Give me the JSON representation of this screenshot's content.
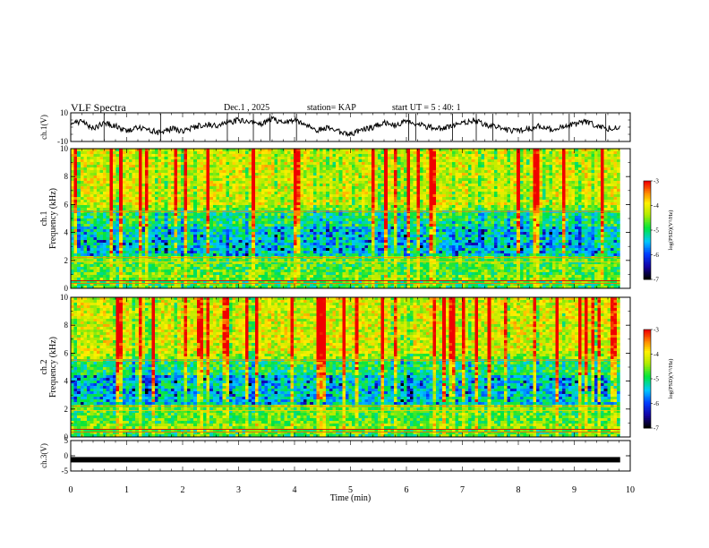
{
  "header": {
    "title": "VLF Spectra",
    "date": "Dec.1 , 2025",
    "station": "station= KAP",
    "start_ut": "start UT = 5 : 40: 1"
  },
  "chart_data": [
    {
      "id": "ch1-waveform",
      "type": "line",
      "ylabel": "ch.1(V)",
      "ylim": [
        -10,
        10
      ],
      "y_tick_labels": [
        "10",
        "-10"
      ],
      "xlim": [
        0,
        10
      ],
      "x_step": 0.2,
      "x_start": 0,
      "values": [
        2,
        4,
        -1,
        3,
        1,
        -3,
        0,
        -2,
        -4,
        -1,
        -3,
        0,
        2,
        1,
        3,
        5,
        4,
        2,
        6,
        3,
        5,
        1,
        -2,
        0,
        -3,
        -5,
        -2,
        0,
        3,
        1,
        4,
        2,
        0,
        -1,
        1,
        3,
        5,
        2,
        0,
        -2,
        -3,
        -1,
        1,
        -2,
        0,
        2,
        4,
        1,
        -1,
        0
      ]
    },
    {
      "id": "ch1-spectrogram",
      "type": "heatmap",
      "ylabel": "Frequency (kHz)",
      "channel_label": "ch.1",
      "ylim": [
        0,
        10
      ],
      "y_tick_labels": [
        "0",
        "2",
        "4",
        "6",
        "8",
        "10"
      ],
      "xlim": [
        0,
        10
      ],
      "colorbar": {
        "label": "log(PSD)(V²/Hz)",
        "range": [
          -7,
          -3
        ],
        "tick_labels": [
          "-3",
          "-4",
          "-5",
          "-6",
          "-7"
        ]
      }
    },
    {
      "id": "ch2-spectrogram",
      "type": "heatmap",
      "ylabel": "Frequency (kHz)",
      "channel_label": "ch.2",
      "ylim": [
        0,
        10
      ],
      "y_tick_labels": [
        "0",
        "2",
        "4",
        "6",
        "8",
        "10"
      ],
      "xlim": [
        0,
        10
      ],
      "colorbar": {
        "label": "log(PSD)(V²/Hz)",
        "range": [
          -7,
          -3
        ],
        "tick_labels": [
          "-3",
          "-4",
          "-5",
          "-6",
          "-7"
        ]
      }
    },
    {
      "id": "ch3-waveform",
      "type": "line",
      "ylabel": "ch.3(V)",
      "ylim": [
        -5,
        5
      ],
      "y_tick_labels": [
        "5",
        "0",
        "-5"
      ],
      "xlim": [
        0,
        10
      ],
      "constant_value": -1.3,
      "x_end": 9.82,
      "xlabel": "Time (min)",
      "x_tick_labels": [
        "0",
        "1",
        "2",
        "3",
        "4",
        "5",
        "6",
        "7",
        "8",
        "9",
        "10"
      ]
    }
  ]
}
